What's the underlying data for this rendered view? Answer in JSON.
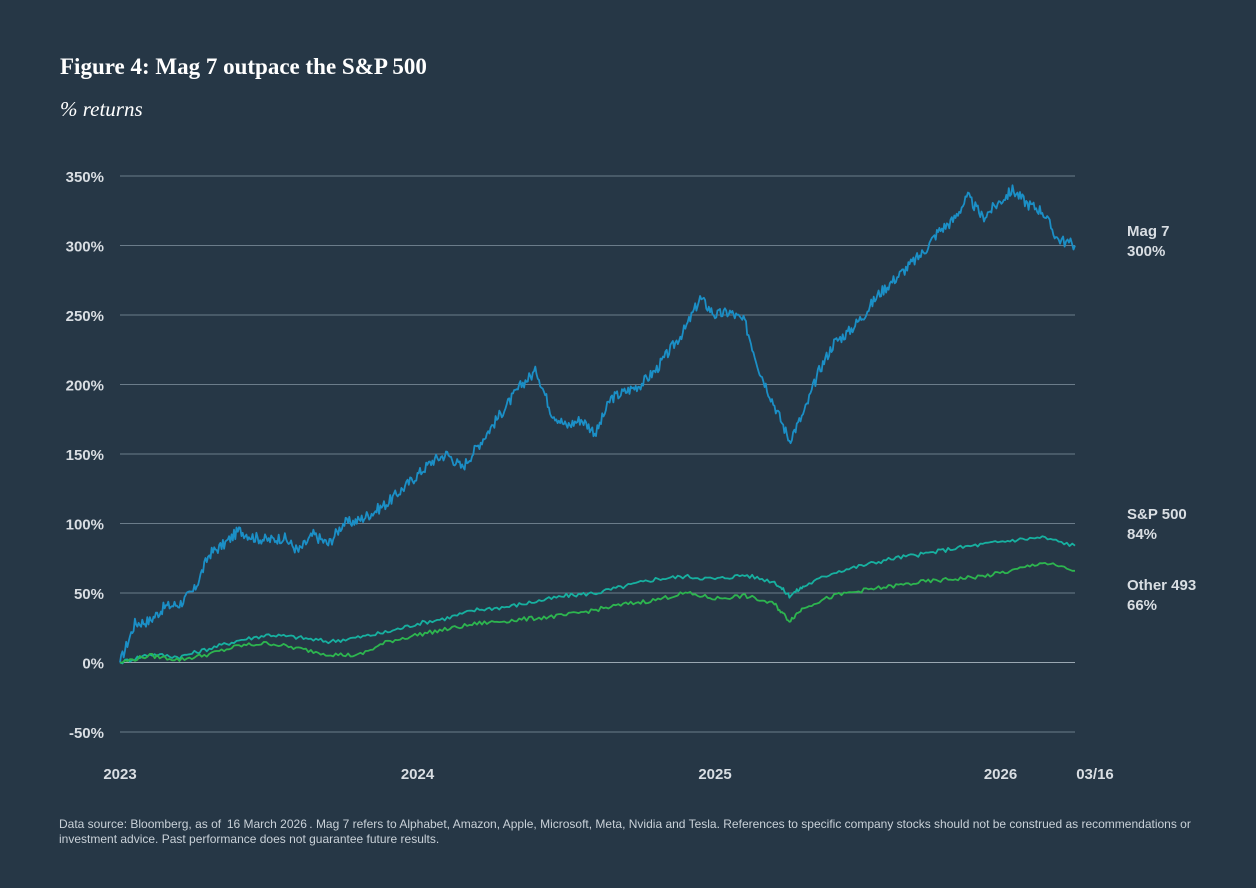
{
  "title": "Figure 4: Mag 7 outpace the S&P 500",
  "subtitle": "% returns",
  "footnote": "Data source: Bloomberg, as of  16 March 2026 . Mag 7 refers to Alphabet, Amazon, Apple, Microsoft, Meta, Nvidia and Tesla. References to specific company stocks should not be construed as recommendations or investment advice. Past performance does not guarantee future results.",
  "colors": {
    "background": "#263746",
    "gridline": "#6b7c8a",
    "mag7": "#1b8fc6",
    "sp500": "#17b0a0",
    "other493": "#2db54f",
    "label_text": "#d9dee3"
  },
  "chart_data": {
    "type": "line",
    "title": "Figure 4: Mag 7 outpace the S&P 500",
    "subtitle": "% returns",
    "xlabel": "",
    "ylabel": "% returns",
    "ylim": [
      -50,
      350
    ],
    "grid": true,
    "legend": "right-end labels",
    "y_ticks": [
      {
        "value": -50,
        "label": "-50%"
      },
      {
        "value": 0,
        "label": "0%"
      },
      {
        "value": 50,
        "label": "50%"
      },
      {
        "value": 100,
        "label": "100%"
      },
      {
        "value": 150,
        "label": "150%"
      },
      {
        "value": 200,
        "label": "200%"
      },
      {
        "value": 250,
        "label": "250%"
      },
      {
        "value": 300,
        "label": "300%"
      },
      {
        "value": 350,
        "label": "350%"
      }
    ],
    "x_ticks": [
      {
        "value": 2023.0,
        "label": "2023"
      },
      {
        "value": 2024.0,
        "label": "2024"
      },
      {
        "value": 2025.0,
        "label": "2025"
      },
      {
        "value": 2026.0,
        "label": "2026"
      },
      {
        "value": 2026.21,
        "label": "03/16"
      }
    ],
    "xlim": [
      2023.0,
      2026.21
    ],
    "series": [
      {
        "name": "Mag 7",
        "end_label": "300%",
        "color": "#1b8fc6",
        "x": [
          2023.0,
          2023.05,
          2023.1,
          2023.15,
          2023.2,
          2023.25,
          2023.3,
          2023.35,
          2023.4,
          2023.45,
          2023.5,
          2023.55,
          2023.6,
          2023.65,
          2023.7,
          2023.75,
          2023.8,
          2023.85,
          2023.9,
          2023.95,
          2024.0,
          2024.05,
          2024.1,
          2024.15,
          2024.2,
          2024.25,
          2024.3,
          2024.35,
          2024.4,
          2024.45,
          2024.5,
          2024.55,
          2024.6,
          2024.65,
          2024.7,
          2024.75,
          2024.8,
          2024.85,
          2024.9,
          2024.95,
          2025.0,
          2025.05,
          2025.1,
          2025.15,
          2025.2,
          2025.25,
          2025.3,
          2025.35,
          2025.4,
          2025.45,
          2025.5,
          2025.55,
          2025.6,
          2025.65,
          2025.7,
          2025.75,
          2025.8,
          2025.85,
          2025.9,
          2025.95,
          2026.0,
          2026.05,
          2026.1,
          2026.15,
          2026.21
        ],
        "values": [
          0,
          28,
          30,
          40,
          42,
          52,
          78,
          85,
          95,
          90,
          88,
          90,
          80,
          92,
          85,
          100,
          102,
          108,
          115,
          125,
          135,
          145,
          150,
          140,
          155,
          170,
          185,
          200,
          210,
          180,
          170,
          175,
          165,
          190,
          195,
          200,
          210,
          225,
          240,
          262,
          250,
          252,
          245,
          210,
          185,
          160,
          180,
          210,
          230,
          238,
          250,
          265,
          275,
          285,
          295,
          310,
          318,
          335,
          320,
          330,
          340,
          330,
          325,
          305,
          300
        ]
      },
      {
        "name": "S&P 500",
        "end_label": "84%",
        "color": "#17b0a0",
        "x": [
          2023.0,
          2023.1,
          2023.2,
          2023.3,
          2023.4,
          2023.5,
          2023.6,
          2023.7,
          2023.8,
          2023.9,
          2024.0,
          2024.1,
          2024.2,
          2024.3,
          2024.4,
          2024.5,
          2024.6,
          2024.7,
          2024.8,
          2024.9,
          2025.0,
          2025.1,
          2025.2,
          2025.25,
          2025.3,
          2025.4,
          2025.5,
          2025.6,
          2025.7,
          2025.8,
          2025.9,
          2026.0,
          2026.1,
          2026.21
        ],
        "values": [
          0,
          6,
          4,
          10,
          16,
          20,
          18,
          15,
          18,
          22,
          28,
          32,
          38,
          40,
          44,
          48,
          50,
          55,
          60,
          62,
          60,
          63,
          58,
          48,
          55,
          65,
          70,
          75,
          78,
          82,
          85,
          88,
          90,
          84
        ]
      },
      {
        "name": "Other 493",
        "end_label": "66%",
        "color": "#2db54f",
        "x": [
          2023.0,
          2023.1,
          2023.2,
          2023.3,
          2023.4,
          2023.5,
          2023.6,
          2023.7,
          2023.8,
          2023.9,
          2024.0,
          2024.1,
          2024.2,
          2024.3,
          2024.4,
          2024.5,
          2024.6,
          2024.7,
          2024.8,
          2024.9,
          2025.0,
          2025.1,
          2025.2,
          2025.25,
          2025.3,
          2025.4,
          2025.5,
          2025.6,
          2025.7,
          2025.8,
          2025.9,
          2026.0,
          2026.1,
          2026.21
        ],
        "values": [
          0,
          5,
          2,
          6,
          12,
          14,
          10,
          6,
          5,
          15,
          20,
          24,
          28,
          30,
          32,
          34,
          38,
          42,
          45,
          50,
          46,
          48,
          42,
          30,
          40,
          48,
          52,
          55,
          58,
          60,
          62,
          66,
          72,
          66
        ]
      }
    ]
  }
}
